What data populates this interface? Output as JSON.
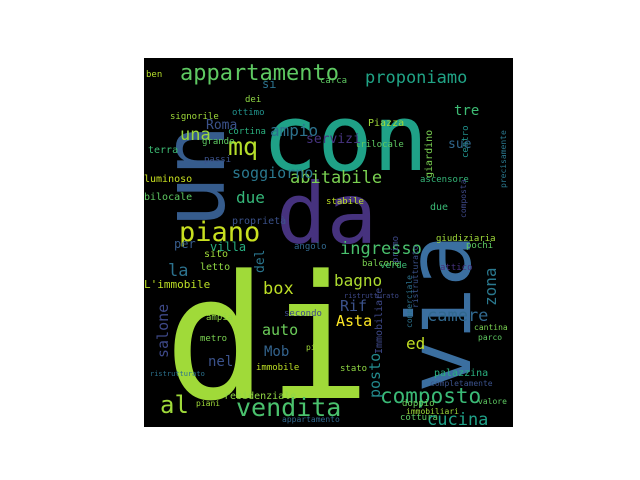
{
  "wordcloud": {
    "background": "#000000",
    "palette": [
      "#440154",
      "#3b528b",
      "#21918c",
      "#5ec962",
      "#fde725"
    ],
    "words": [
      {
        "text": "di",
        "color": "#a0da39"
      },
      {
        "text": "con",
        "color": "#1fa187"
      },
      {
        "text": "da",
        "color": "#46327e"
      },
      {
        "text": "un",
        "color": "#365c8d"
      },
      {
        "text": "via",
        "color": "#3b6fa0"
      },
      {
        "text": "piano",
        "color": "#c8e020"
      },
      {
        "text": "appartamento",
        "color": "#5ec962"
      },
      {
        "text": "vendita",
        "color": "#4ac16d"
      },
      {
        "text": "al",
        "color": "#9fda3a"
      },
      {
        "text": "mq",
        "color": "#b5de2b"
      },
      {
        "text": "composto",
        "color": "#3aba76"
      },
      {
        "text": "proponiamo",
        "color": "#20a486"
      },
      {
        "text": "ingresso",
        "color": "#4ac16d"
      },
      {
        "text": "abitabile",
        "color": "#7ad151"
      },
      {
        "text": "bagno",
        "color": "#addc30"
      },
      {
        "text": "cucina",
        "color": "#1fa188"
      },
      {
        "text": "una",
        "color": "#9bd93c"
      },
      {
        "text": "box",
        "color": "#bddf26"
      },
      {
        "text": "auto",
        "color": "#6ccd5a"
      },
      {
        "text": "Asta",
        "color": "#fde725"
      },
      {
        "text": "camere",
        "color": "#31688e"
      },
      {
        "text": "ampio",
        "color": "#2c728e"
      },
      {
        "text": "soggiorno",
        "color": "#2a788e"
      },
      {
        "text": "due",
        "color": "#35b779"
      },
      {
        "text": "Mob",
        "color": "#33638d"
      },
      {
        "text": "salone",
        "color": "#3e4989"
      },
      {
        "text": "la",
        "color": "#2c728e"
      },
      {
        "text": "nel",
        "color": "#3b528b"
      },
      {
        "text": "ed",
        "color": "#c2df23"
      },
      {
        "text": "posto",
        "color": "#238a8d"
      },
      {
        "text": "zona",
        "color": "#2a788e"
      },
      {
        "text": "Roma",
        "color": "#3b528b"
      },
      {
        "text": "Rif",
        "color": "#3b528b"
      },
      {
        "text": "del",
        "color": "#2a768e"
      },
      {
        "text": "per",
        "color": "#365c8d"
      },
      {
        "text": "villa",
        "color": "#28ae80"
      },
      {
        "text": "L'immobile",
        "color": "#bddf26"
      },
      {
        "text": "letto",
        "color": "#8fd744"
      },
      {
        "text": "sito",
        "color": "#9fda3a"
      },
      {
        "text": "bilocale",
        "color": "#5ec962"
      },
      {
        "text": "luminoso",
        "color": "#c8e020"
      },
      {
        "text": "terra",
        "color": "#3dbc74"
      },
      {
        "text": "ottimo",
        "color": "#21918c"
      },
      {
        "text": "cortina",
        "color": "#2ab07f"
      },
      {
        "text": "signorile",
        "color": "#9fda3a"
      },
      {
        "text": "dei",
        "color": "#8fd744"
      },
      {
        "text": "ben",
        "color": "#b5de2b"
      },
      {
        "text": "si",
        "color": "#2c728e"
      },
      {
        "text": "carca",
        "color": "#5ec962"
      },
      {
        "text": "Piazza",
        "color": "#a0da39"
      },
      {
        "text": "trilocale",
        "color": "#5ec962"
      },
      {
        "text": "giardino",
        "color": "#7ad151"
      },
      {
        "text": "ascensore",
        "color": "#35b779"
      },
      {
        "text": "secondo",
        "color": "#3e4989"
      },
      {
        "text": "angolo",
        "color": "#31688e"
      },
      {
        "text": "balcone",
        "color": "#7ad151"
      },
      {
        "text": "giudiziaria",
        "color": "#a0da39"
      },
      {
        "text": "pochi",
        "color": "#5ec962"
      },
      {
        "text": "stabile",
        "color": "#bddf26"
      },
      {
        "text": "proprietà",
        "color": "#3b528b"
      },
      {
        "text": "residenziale",
        "color": "#8fd744"
      },
      {
        "text": "metro",
        "color": "#7ad151"
      },
      {
        "text": "ampia",
        "color": "#8fd744"
      },
      {
        "text": "immobile",
        "color": "#bddf26"
      },
      {
        "text": "stato",
        "color": "#8fd744"
      },
      {
        "text": "doppio",
        "color": "#6ccd5a"
      },
      {
        "text": "cottura",
        "color": "#5ec962"
      },
      {
        "text": "palazzina",
        "color": "#2ab07f"
      },
      {
        "text": "Immobiliare",
        "color": "#3e4989"
      },
      {
        "text": "primo",
        "color": "#3e4989"
      },
      {
        "text": "verde",
        "color": "#3dbc74"
      },
      {
        "text": "centro",
        "color": "#21918c"
      },
      {
        "text": "due",
        "color": "#3aba76"
      },
      {
        "text": "tre",
        "color": "#3dbc74"
      },
      {
        "text": "sue",
        "color": "#31688e"
      },
      {
        "text": "servizi",
        "color": "#46337f"
      },
      {
        "text": "passi",
        "color": "#3b528b"
      },
      {
        "text": "grande",
        "color": "#5ec962"
      },
      {
        "text": "appartamento",
        "color": "#31688e"
      },
      {
        "text": "piani",
        "color": "#a0da39"
      },
      {
        "text": "precisamente",
        "color": "#2a788e"
      },
      {
        "text": "ristrutturato",
        "color": "#3b528b"
      },
      {
        "text": "commerciale",
        "color": "#2c728e"
      },
      {
        "text": "composta",
        "color": "#3e4989"
      },
      {
        "text": "valore",
        "color": "#5ec962"
      },
      {
        "text": "cantina",
        "color": "#7ad151"
      },
      {
        "text": "parco",
        "color": "#5ec962"
      },
      {
        "text": "attico",
        "color": "#46327e"
      },
      {
        "text": "piu",
        "color": "#a0da39"
      },
      {
        "text": "immobiliari",
        "color": "#9fda3a"
      },
      {
        "text": "completamente",
        "color": "#3b528b"
      },
      {
        "text": "ristrutturato",
        "color": "#3e4989"
      },
      {
        "text": "ristrutturato",
        "color": "#2c728e"
      }
    ]
  }
}
